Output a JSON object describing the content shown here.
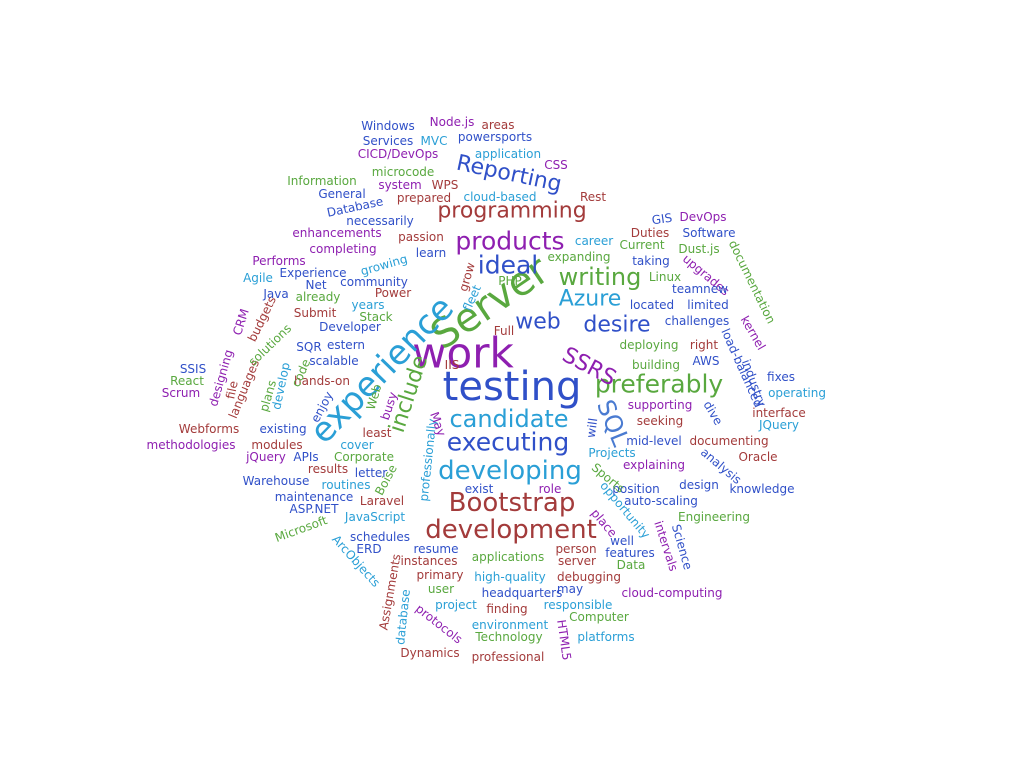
{
  "palette": [
    "#2a9fd6",
    "#4a7bd1",
    "#a33b3b",
    "#59a83f",
    "#8e1fb0",
    "#3050c8"
  ],
  "words": [
    {
      "text": "work",
      "color": "#8e1fb0"
    },
    {
      "text": "testing",
      "color": "#3050c8"
    },
    {
      "text": "Server",
      "color": "#59a83f"
    },
    {
      "text": "experience",
      "color": "#2a9fd6"
    },
    {
      "text": "development",
      "color": "#a33b3b"
    },
    {
      "text": "Bootstrap",
      "color": "#a33b3b"
    },
    {
      "text": "developing",
      "color": "#2a9fd6"
    },
    {
      "text": "executing",
      "color": "#3050c8"
    },
    {
      "text": "candidate",
      "color": "#2a9fd6"
    },
    {
      "text": "preferably",
      "color": "#59a83f"
    },
    {
      "text": "products",
      "color": "#8e1fb0"
    },
    {
      "text": "programming",
      "color": "#a33b3b"
    },
    {
      "text": "Reporting",
      "color": "#3050c8"
    },
    {
      "text": "ideal",
      "color": "#3050c8"
    },
    {
      "text": "writing",
      "color": "#59a83f"
    },
    {
      "text": "web",
      "color": "#3050c8"
    },
    {
      "text": "desire",
      "color": "#3050c8"
    },
    {
      "text": "Azure",
      "color": "#2a9fd6"
    },
    {
      "text": "SQL",
      "color": "#4a7bd1"
    },
    {
      "text": "SSRS",
      "color": "#8e1fb0"
    },
    {
      "text": "include",
      "color": "#59a83f"
    },
    {
      "text": "Windows",
      "color": "#3050c8"
    },
    {
      "text": "Node.js",
      "color": "#8e1fb0"
    },
    {
      "text": "areas",
      "color": "#a33b3b"
    },
    {
      "text": "Services",
      "color": "#3050c8"
    },
    {
      "text": "MVC",
      "color": "#2a9fd6"
    },
    {
      "text": "powersports",
      "color": "#3050c8"
    },
    {
      "text": "CICD/DevOps",
      "color": "#8e1fb0"
    },
    {
      "text": "application",
      "color": "#2a9fd6"
    },
    {
      "text": "CSS",
      "color": "#8e1fb0"
    },
    {
      "text": "microcode",
      "color": "#59a83f"
    },
    {
      "text": "Information",
      "color": "#59a83f"
    },
    {
      "text": "system",
      "color": "#8e1fb0"
    },
    {
      "text": "WPS",
      "color": "#a33b3b"
    },
    {
      "text": "Rest",
      "color": "#a33b3b"
    },
    {
      "text": "General",
      "color": "#3050c8"
    },
    {
      "text": "prepared",
      "color": "#a33b3b"
    },
    {
      "text": "cloud-based",
      "color": "#2a9fd6"
    },
    {
      "text": "Database",
      "color": "#3050c8"
    },
    {
      "text": "necessarily",
      "color": "#3050c8"
    },
    {
      "text": "GIS",
      "color": "#3050c8"
    },
    {
      "text": "DevOps",
      "color": "#8e1fb0"
    },
    {
      "text": "enhancements",
      "color": "#8e1fb0"
    },
    {
      "text": "passion",
      "color": "#a33b3b"
    },
    {
      "text": "career",
      "color": "#2a9fd6"
    },
    {
      "text": "Duties",
      "color": "#a33b3b"
    },
    {
      "text": "Software",
      "color": "#3050c8"
    },
    {
      "text": "completing",
      "color": "#8e1fb0"
    },
    {
      "text": "Current",
      "color": "#59a83f"
    },
    {
      "text": "Dust.js",
      "color": "#59a83f"
    },
    {
      "text": "learn",
      "color": "#3050c8"
    },
    {
      "text": "Performs",
      "color": "#8e1fb0"
    },
    {
      "text": "growing",
      "color": "#2a9fd6"
    },
    {
      "text": "expanding",
      "color": "#59a83f"
    },
    {
      "text": "taking",
      "color": "#3050c8"
    },
    {
      "text": "Experience",
      "color": "#3050c8"
    },
    {
      "text": "Linux",
      "color": "#59a83f"
    },
    {
      "text": "upgrades",
      "color": "#8e1fb0"
    },
    {
      "text": "documentation",
      "color": "#59a83f"
    },
    {
      "text": "Agile",
      "color": "#2a9fd6"
    },
    {
      "text": "Net",
      "color": "#3050c8"
    },
    {
      "text": "community",
      "color": "#3050c8"
    },
    {
      "text": "PHP",
      "color": "#59a83f"
    },
    {
      "text": "teamnew",
      "color": "#3050c8"
    },
    {
      "text": "Java",
      "color": "#3050c8"
    },
    {
      "text": "already",
      "color": "#59a83f"
    },
    {
      "text": "Power",
      "color": "#a33b3b"
    },
    {
      "text": "years",
      "color": "#2a9fd6"
    },
    {
      "text": "located",
      "color": "#3050c8"
    },
    {
      "text": "limited",
      "color": "#3050c8"
    },
    {
      "text": "Submit",
      "color": "#a33b3b"
    },
    {
      "text": "Stack",
      "color": "#59a83f"
    },
    {
      "text": "budgets",
      "color": "#a33b3b"
    },
    {
      "text": "challenges",
      "color": "#3050c8"
    },
    {
      "text": "kernel",
      "color": "#8e1fb0"
    },
    {
      "text": "Developer",
      "color": "#3050c8"
    },
    {
      "text": "Full",
      "color": "#a33b3b"
    },
    {
      "text": "CRM",
      "color": "#8e1fb0"
    },
    {
      "text": "SQR",
      "color": "#3050c8"
    },
    {
      "text": "estern",
      "color": "#3050c8"
    },
    {
      "text": "deploying",
      "color": "#59a83f"
    },
    {
      "text": "right",
      "color": "#a33b3b"
    },
    {
      "text": "load-balanced",
      "color": "#3050c8"
    },
    {
      "text": "scalable",
      "color": "#3050c8"
    },
    {
      "text": "IIS",
      "color": "#a33b3b"
    },
    {
      "text": "building",
      "color": "#59a83f"
    },
    {
      "text": "AWS",
      "color": "#3050c8"
    },
    {
      "text": "SSIS",
      "color": "#3050c8"
    },
    {
      "text": "hands-on",
      "color": "#a33b3b"
    },
    {
      "text": "industry",
      "color": "#3050c8"
    },
    {
      "text": "fixes",
      "color": "#3050c8"
    },
    {
      "text": "React",
      "color": "#59a83f"
    },
    {
      "text": "operating",
      "color": "#2a9fd6"
    },
    {
      "text": "Scrum",
      "color": "#8e1fb0"
    },
    {
      "text": "languages",
      "color": "#a33b3b"
    },
    {
      "text": "supporting",
      "color": "#8e1fb0"
    },
    {
      "text": "dive",
      "color": "#3050c8"
    },
    {
      "text": "interface",
      "color": "#a33b3b"
    },
    {
      "text": "seeking",
      "color": "#a33b3b"
    },
    {
      "text": "Webforms",
      "color": "#a33b3b"
    },
    {
      "text": "existing",
      "color": "#3050c8"
    },
    {
      "text": "least",
      "color": "#a33b3b"
    },
    {
      "text": "JQuery",
      "color": "#2a9fd6"
    },
    {
      "text": "methodologies",
      "color": "#8e1fb0"
    },
    {
      "text": "modules",
      "color": "#a33b3b"
    },
    {
      "text": "cover",
      "color": "#2a9fd6"
    },
    {
      "text": "mid-level",
      "color": "#3050c8"
    },
    {
      "text": "documenting",
      "color": "#a33b3b"
    },
    {
      "text": "jQuery",
      "color": "#8e1fb0"
    },
    {
      "text": "APIs",
      "color": "#3050c8"
    },
    {
      "text": "Corporate",
      "color": "#59a83f"
    },
    {
      "text": "Projects",
      "color": "#2a9fd6"
    },
    {
      "text": "Oracle",
      "color": "#a33b3b"
    },
    {
      "text": "results",
      "color": "#a33b3b"
    },
    {
      "text": "letter",
      "color": "#3050c8"
    },
    {
      "text": "explaining",
      "color": "#8e1fb0"
    },
    {
      "text": "analysis",
      "color": "#3050c8"
    },
    {
      "text": "Warehouse",
      "color": "#3050c8"
    },
    {
      "text": "routines",
      "color": "#2a9fd6"
    },
    {
      "text": "exist",
      "color": "#3050c8"
    },
    {
      "text": "role",
      "color": "#8e1fb0"
    },
    {
      "text": "position",
      "color": "#3050c8"
    },
    {
      "text": "design",
      "color": "#3050c8"
    },
    {
      "text": "knowledge",
      "color": "#3050c8"
    },
    {
      "text": "maintenance",
      "color": "#3050c8"
    },
    {
      "text": "Laravel",
      "color": "#a33b3b"
    },
    {
      "text": "auto-scaling",
      "color": "#3050c8"
    },
    {
      "text": "ASP.NET",
      "color": "#3050c8"
    },
    {
      "text": "JavaScript",
      "color": "#2a9fd6"
    },
    {
      "text": "Engineering",
      "color": "#59a83f"
    },
    {
      "text": "Microsoft",
      "color": "#59a83f"
    },
    {
      "text": "schedules",
      "color": "#3050c8"
    },
    {
      "text": "ERD",
      "color": "#3050c8"
    },
    {
      "text": "resume",
      "color": "#3050c8"
    },
    {
      "text": "well",
      "color": "#3050c8"
    },
    {
      "text": "person",
      "color": "#a33b3b"
    },
    {
      "text": "features",
      "color": "#3050c8"
    },
    {
      "text": "instances",
      "color": "#a33b3b"
    },
    {
      "text": "applications",
      "color": "#59a83f"
    },
    {
      "text": "server",
      "color": "#a33b3b"
    },
    {
      "text": "Data",
      "color": "#59a83f"
    },
    {
      "text": "primary",
      "color": "#a33b3b"
    },
    {
      "text": "high-quality",
      "color": "#2a9fd6"
    },
    {
      "text": "debugging",
      "color": "#a33b3b"
    },
    {
      "text": "user",
      "color": "#59a83f"
    },
    {
      "text": "headquarters",
      "color": "#3050c8"
    },
    {
      "text": "may",
      "color": "#3050c8"
    },
    {
      "text": "cloud-computing",
      "color": "#8e1fb0"
    },
    {
      "text": "project",
      "color": "#2a9fd6"
    },
    {
      "text": "finding",
      "color": "#a33b3b"
    },
    {
      "text": "responsible",
      "color": "#2a9fd6"
    },
    {
      "text": "Computer",
      "color": "#59a83f"
    },
    {
      "text": "environment",
      "color": "#2a9fd6"
    },
    {
      "text": "Technology",
      "color": "#59a83f"
    },
    {
      "text": "platforms",
      "color": "#2a9fd6"
    },
    {
      "text": "Dynamics",
      "color": "#a33b3b"
    },
    {
      "text": "professional",
      "color": "#a33b3b"
    },
    {
      "text": "code",
      "color": "#59a83f"
    },
    {
      "text": "solutions",
      "color": "#59a83f"
    },
    {
      "text": "develop",
      "color": "#2a9fd6"
    },
    {
      "text": "plans",
      "color": "#59a83f"
    },
    {
      "text": "designing",
      "color": "#8e1fb0"
    },
    {
      "text": "file",
      "color": "#a33b3b"
    },
    {
      "text": "enjoy",
      "color": "#3050c8"
    },
    {
      "text": "Web",
      "color": "#59a83f"
    },
    {
      "text": "busy",
      "color": "#8e1fb0"
    },
    {
      "text": "professionally",
      "color": "#2a9fd6"
    },
    {
      "text": "Boise",
      "color": "#59a83f"
    },
    {
      "text": "May",
      "color": "#8e1fb0"
    },
    {
      "text": "will",
      "color": "#3050c8"
    },
    {
      "text": "grow",
      "color": "#a33b3b"
    },
    {
      "text": "fleet",
      "color": "#2a9fd6"
    },
    {
      "text": "Sports",
      "color": "#59a83f"
    },
    {
      "text": "opportunity",
      "color": "#2a9fd6"
    },
    {
      "text": "place",
      "color": "#8e1fb0"
    },
    {
      "text": "intervals",
      "color": "#8e1fb0"
    },
    {
      "text": "Science",
      "color": "#3050c8"
    },
    {
      "text": "ArcObjects",
      "color": "#2a9fd6"
    },
    {
      "text": "Assignments",
      "color": "#a33b3b"
    },
    {
      "text": "database",
      "color": "#2a9fd6"
    },
    {
      "text": "protocols",
      "color": "#8e1fb0"
    },
    {
      "text": "HTML5",
      "color": "#8e1fb0"
    }
  ]
}
